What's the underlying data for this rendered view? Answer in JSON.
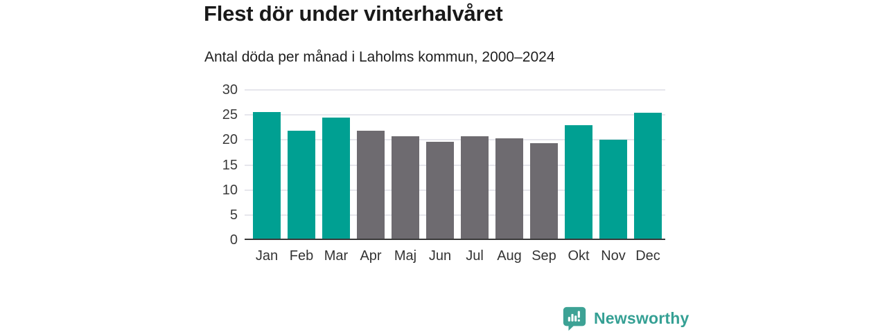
{
  "chart_data": {
    "type": "bar",
    "title": "Flest dör under vinterhalvåret",
    "subtitle": "Antal döda per månad i Laholms kommun, 2000–2024",
    "categories": [
      "Jan",
      "Feb",
      "Mar",
      "Apr",
      "Maj",
      "Jun",
      "Jul",
      "Aug",
      "Sep",
      "Okt",
      "Nov",
      "Dec"
    ],
    "values": [
      25.3,
      21.6,
      24.2,
      21.5,
      20.4,
      19.3,
      20.5,
      20.1,
      19.1,
      22.7,
      19.8,
      25.2
    ],
    "bar_seasons": [
      "winter",
      "winter",
      "winter",
      "summer",
      "summer",
      "summer",
      "summer",
      "summer",
      "summer",
      "winter",
      "winter",
      "winter"
    ],
    "palette": {
      "winter": "#00a092",
      "summer": "#6e6b70"
    },
    "xlabel": "",
    "ylabel": "",
    "ylim": [
      0,
      30
    ],
    "yticks": [
      0,
      5,
      10,
      15,
      20,
      25,
      30
    ],
    "grid": true,
    "legend_position": "none"
  },
  "colors": {
    "background": "#ffffff",
    "title_text": "#191919",
    "axis_text": "#3a3a3a",
    "gridline": "#e6e6ec",
    "axis_line": "#383838",
    "brand_teal": "#35a094"
  },
  "footer": {
    "brand": "Newsworthy",
    "logo_icon": "newsworthy-speech-bubble-bar-chart-icon"
  }
}
